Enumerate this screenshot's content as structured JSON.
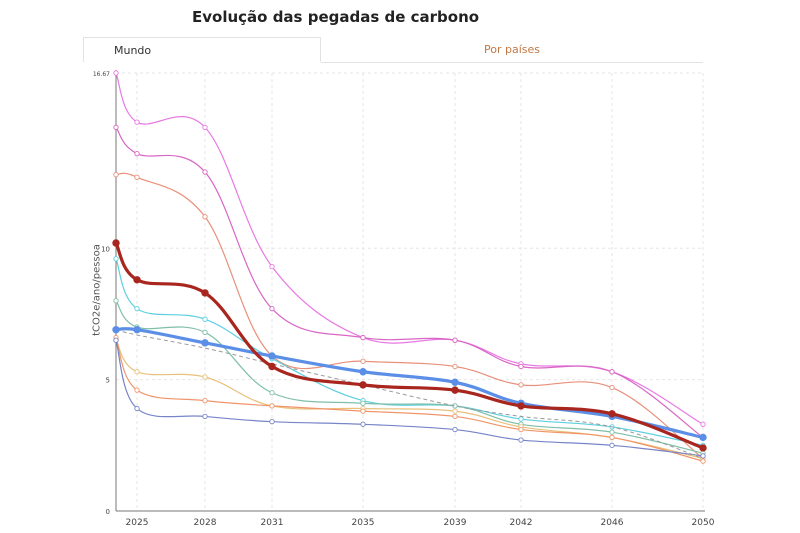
{
  "title": "Evolução das pegadas de carbono",
  "tabs": [
    {
      "label": "Mundo",
      "active": true
    },
    {
      "label": "Por países",
      "active": false
    }
  ],
  "chart_data": {
    "type": "line",
    "title": "Evolução das pegadas de carbono",
    "ylabel": "tCO2e/ano/pessoa",
    "xlabel": "",
    "x": [
      2024,
      2025,
      2028,
      2031,
      2035,
      2039,
      2042,
      2046,
      2050
    ],
    "x_tick_labels": [
      "2025",
      "2028",
      "2031",
      "2035",
      "2039",
      "2042",
      "2046",
      "2050"
    ],
    "y_tick_labels": [
      "0",
      "5",
      "10",
      "16.67"
    ],
    "ylim": [
      0,
      16.67
    ],
    "grid": true,
    "series": [
      {
        "color": "#e879e3",
        "width": 1.2,
        "values": [
          16.67,
          14.8,
          14.6,
          9.3,
          6.6,
          6.5,
          5.6,
          5.3,
          3.3
        ]
      },
      {
        "color": "#d966c4",
        "width": 1.2,
        "values": [
          14.6,
          13.6,
          12.9,
          7.7,
          6.6,
          6.5,
          5.5,
          5.3,
          2.8
        ]
      },
      {
        "color": "#e8907a",
        "width": 1.2,
        "values": [
          12.8,
          12.7,
          11.2,
          5.9,
          5.7,
          5.5,
          4.8,
          4.7,
          2.0
        ]
      },
      {
        "color": "#5ccfe0",
        "width": 1.2,
        "values": [
          9.6,
          7.7,
          7.3,
          5.8,
          4.2,
          4.0,
          3.5,
          3.2,
          2.5
        ]
      },
      {
        "color": "#7fbfa8",
        "width": 1.2,
        "values": [
          8.0,
          7.0,
          6.8,
          4.5,
          4.1,
          4.0,
          3.3,
          3.0,
          2.2
        ]
      },
      {
        "color": "#e8c07a",
        "width": 1.2,
        "values": [
          6.5,
          5.3,
          5.1,
          4.0,
          3.9,
          3.8,
          3.2,
          2.8,
          2.0
        ]
      },
      {
        "color": "#f0956a",
        "width": 1.2,
        "values": [
          6.6,
          4.6,
          4.2,
          4.0,
          3.8,
          3.6,
          3.1,
          2.8,
          1.9
        ]
      },
      {
        "color": "#7785c8",
        "width": 1.2,
        "values": [
          6.5,
          3.9,
          3.6,
          3.4,
          3.3,
          3.1,
          2.7,
          2.5,
          2.1
        ]
      },
      {
        "color": "#999999",
        "width": 1.0,
        "dashed": true,
        "values": [
          6.9,
          6.7,
          6.2,
          5.6,
          4.8,
          4.0,
          3.6,
          3.2,
          2.0
        ]
      },
      {
        "color": "#5b8ee6",
        "width": 3.2,
        "values": [
          6.9,
          6.9,
          6.4,
          5.9,
          5.3,
          4.9,
          4.1,
          3.6,
          2.8
        ]
      },
      {
        "color": "#a8261e",
        "width": 3.2,
        "values": [
          10.2,
          8.8,
          8.3,
          5.5,
          4.8,
          4.6,
          4.0,
          3.7,
          2.4
        ]
      }
    ]
  }
}
